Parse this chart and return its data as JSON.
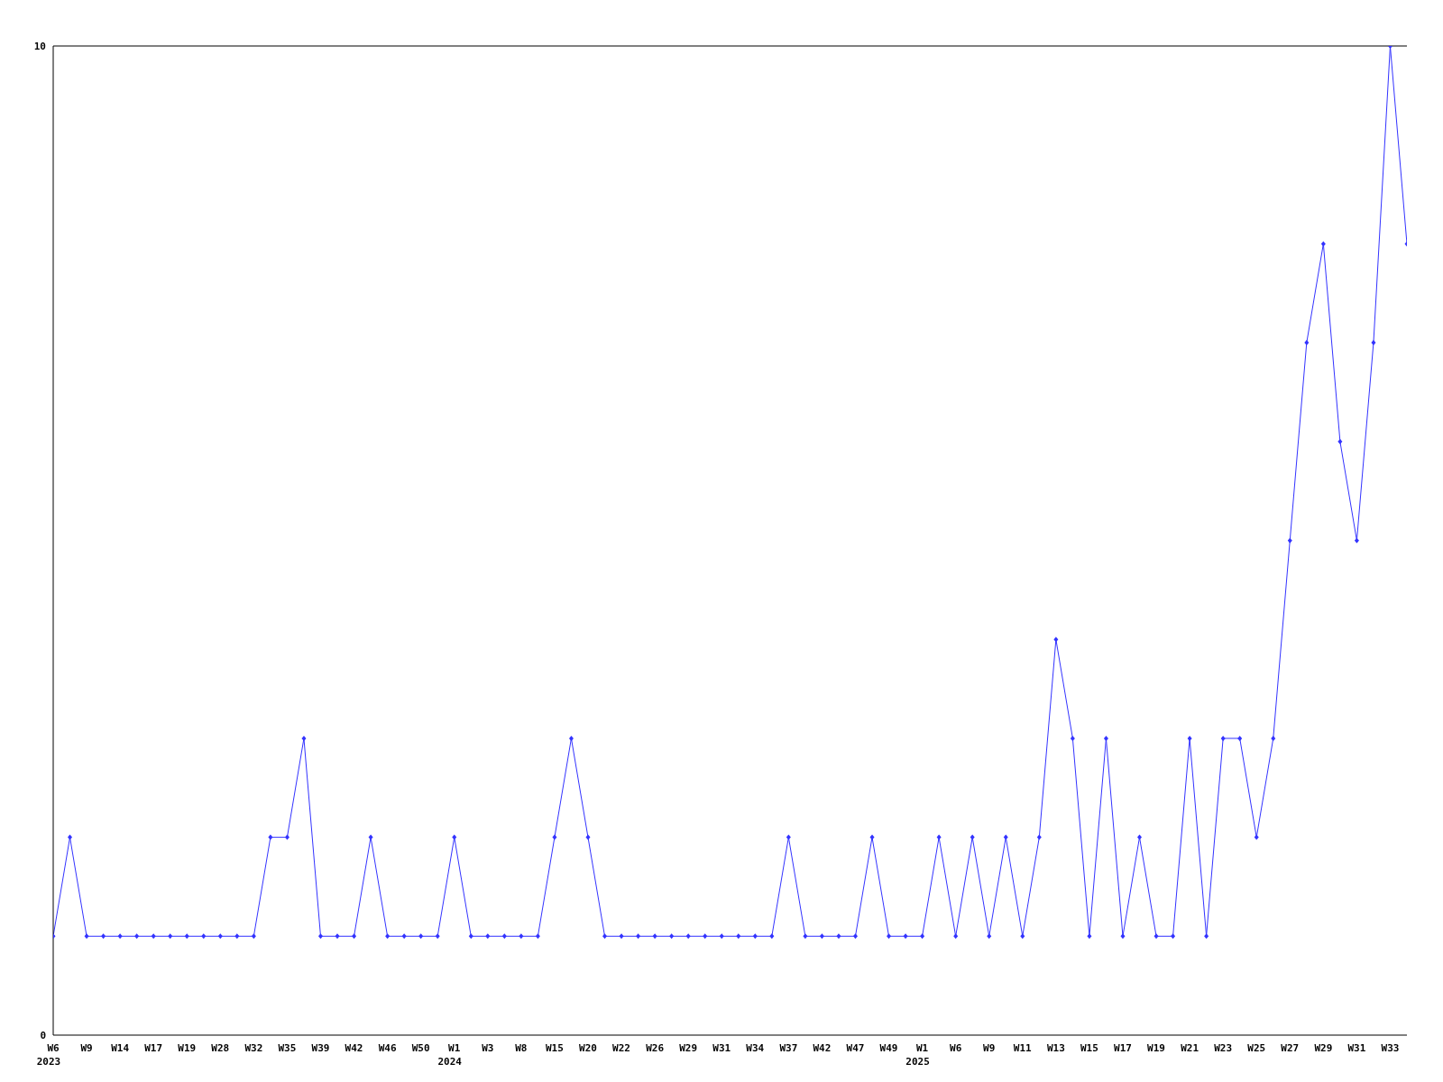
{
  "chart_data": {
    "type": "line",
    "categories": [
      "W6\n2023",
      null,
      "W9",
      null,
      "W14",
      null,
      "W17",
      null,
      "W19",
      null,
      "W28",
      null,
      "W32",
      null,
      "W35",
      null,
      "W39",
      null,
      "W42",
      null,
      "W46",
      null,
      "W50",
      null,
      "W1\n2024",
      null,
      "W3",
      null,
      "W8",
      null,
      "W15",
      null,
      "W20",
      null,
      "W22",
      null,
      "W26",
      null,
      "W29",
      null,
      "W31",
      null,
      "W34",
      null,
      "W37",
      null,
      "W42",
      null,
      "W47",
      null,
      "W49",
      null,
      "W1\n2025",
      null,
      "W6",
      null,
      "W9",
      null,
      "W11",
      null,
      "W13",
      null,
      "W15",
      null,
      "W17",
      null,
      "W19",
      null,
      "W21",
      null,
      "W23",
      null,
      "W25",
      null,
      "W27",
      null,
      "W29",
      null,
      "W31",
      null,
      "W33",
      null
    ],
    "series": [
      {
        "color": "#3333ff",
        "values": [
          1,
          2,
          1,
          1,
          1,
          1,
          1,
          1,
          1,
          1,
          1,
          1,
          1,
          2,
          2,
          3,
          1,
          1,
          1,
          2,
          1,
          1,
          1,
          1,
          2,
          1,
          1,
          1,
          1,
          1,
          2,
          3,
          2,
          1,
          1,
          1,
          1,
          1,
          1,
          1,
          1,
          1,
          1,
          1,
          2,
          1,
          1,
          1,
          1,
          2,
          1,
          1,
          1,
          2,
          1,
          2,
          1,
          2,
          1,
          2,
          4,
          3,
          1,
          3,
          1,
          2,
          1,
          1,
          3,
          1,
          3,
          3,
          2,
          3,
          5,
          7,
          8,
          6,
          5,
          7,
          10,
          8
        ]
      }
    ],
    "ylim": [
      0,
      10
    ],
    "yticks": [
      0,
      10
    ],
    "marker": "diamond",
    "line_style": "solid"
  }
}
